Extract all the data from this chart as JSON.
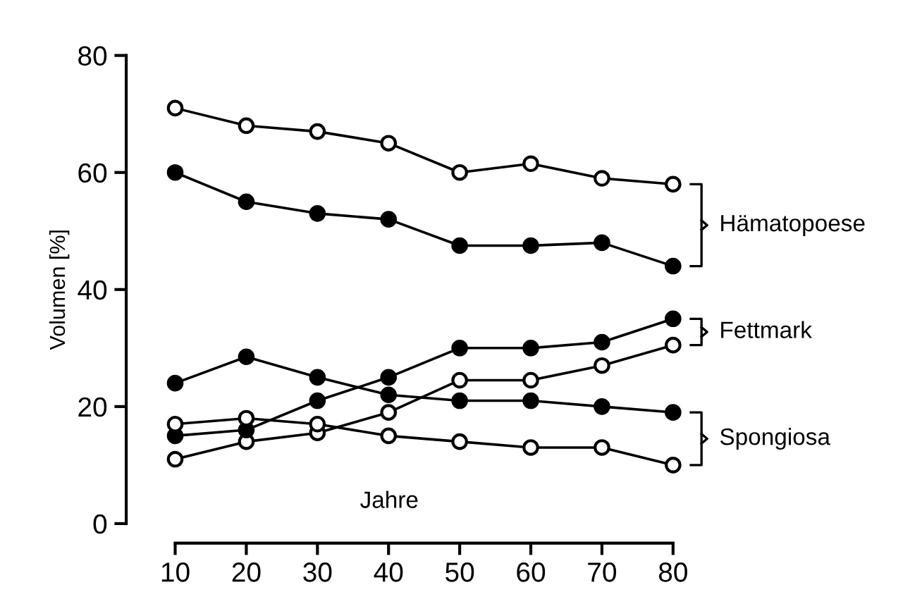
{
  "chart_data": {
    "type": "line",
    "xlabel": "Jahre",
    "ylabel": "Volumen [%]",
    "x": [
      10,
      20,
      30,
      40,
      50,
      60,
      70,
      80
    ],
    "series": [
      {
        "color": "#000000",
        "values": [
          71,
          68,
          67,
          65,
          60,
          61.5,
          59,
          58
        ]
      },
      {
        "color": "#000000",
        "values": [
          60,
          55,
          53,
          52,
          47.5,
          47.5,
          48,
          44
        ]
      },
      {
        "color": "#000000",
        "values": [
          11,
          14,
          15.5,
          19,
          24.5,
          24.5,
          27,
          30.5
        ]
      },
      {
        "color": "#000000",
        "values": [
          15,
          16,
          21,
          25,
          30,
          30,
          31,
          35
        ]
      },
      {
        "color": "#000000",
        "values": [
          17,
          18,
          17,
          15,
          14,
          13,
          13,
          10
        ]
      },
      {
        "color": "#000000",
        "values": [
          24,
          28.5,
          25,
          22,
          21,
          21,
          20,
          19
        ]
      }
    ],
    "annotations": [
      "Hämatopoese",
      "Fettmark",
      "Spongiosa"
    ],
    "xlim": [
      10,
      80
    ],
    "ylim": [
      0,
      80
    ],
    "xticks": [
      10,
      20,
      30,
      40,
      50,
      60,
      70,
      80
    ],
    "yticks": [
      0,
      20,
      40,
      60,
      80
    ],
    "marker": "circle",
    "line_style": "solid",
    "grid": false
  }
}
